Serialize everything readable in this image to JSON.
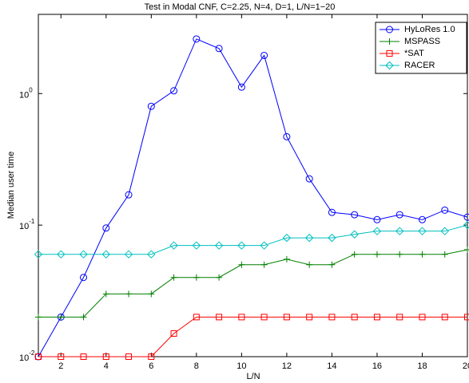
{
  "chart_data": {
    "type": "line",
    "title": "Test in Modal CNF, C=2.25, N=4, D=1, L/N=1−20",
    "xlabel": "L/N",
    "ylabel": "Median user time",
    "x": [
      1,
      2,
      3,
      4,
      5,
      6,
      7,
      8,
      9,
      10,
      11,
      12,
      13,
      14,
      15,
      16,
      17,
      18,
      19,
      20
    ],
    "xlim": [
      1,
      20
    ],
    "xticks": [
      2,
      4,
      6,
      8,
      10,
      12,
      14,
      16,
      18,
      20
    ],
    "ylim": [
      0.01,
      4
    ],
    "log_y": true,
    "yticks": [
      {
        "value": 0.01,
        "label": "10",
        "exponent": "-2"
      },
      {
        "value": 0.1,
        "label": "10",
        "exponent": "-1"
      },
      {
        "value": 1,
        "label": "10",
        "exponent": "0"
      }
    ],
    "legend": "upper right",
    "series": [
      {
        "name": "HyLoRes 1.0",
        "color": "#0000ff",
        "marker": "circle",
        "values": [
          0.01,
          0.02,
          0.04,
          0.095,
          0.17,
          0.8,
          1.05,
          2.6,
          2.2,
          1.12,
          1.95,
          0.47,
          0.225,
          0.125,
          0.12,
          0.11,
          0.12,
          0.11,
          0.13,
          0.115
        ]
      },
      {
        "name": "MSPASS",
        "color": "#007f00",
        "marker": "plus",
        "values": [
          0.02,
          0.02,
          0.02,
          0.03,
          0.03,
          0.03,
          0.04,
          0.04,
          0.04,
          0.05,
          0.05,
          0.055,
          0.05,
          0.05,
          0.06,
          0.06,
          0.06,
          0.06,
          0.06,
          0.065
        ]
      },
      {
        "name": "*SAT",
        "color": "#ff0000",
        "marker": "square",
        "values": [
          0.01,
          0.01,
          0.01,
          0.01,
          0.01,
          0.01,
          0.015,
          0.02,
          0.02,
          0.02,
          0.02,
          0.02,
          0.02,
          0.02,
          0.02,
          0.02,
          0.02,
          0.02,
          0.02,
          0.02
        ]
      },
      {
        "name": "RACER",
        "color": "#00bfbf",
        "marker": "diamond",
        "values": [
          0.06,
          0.06,
          0.06,
          0.06,
          0.06,
          0.06,
          0.07,
          0.07,
          0.07,
          0.07,
          0.07,
          0.08,
          0.08,
          0.08,
          0.085,
          0.09,
          0.09,
          0.09,
          0.09,
          0.1
        ]
      }
    ]
  }
}
